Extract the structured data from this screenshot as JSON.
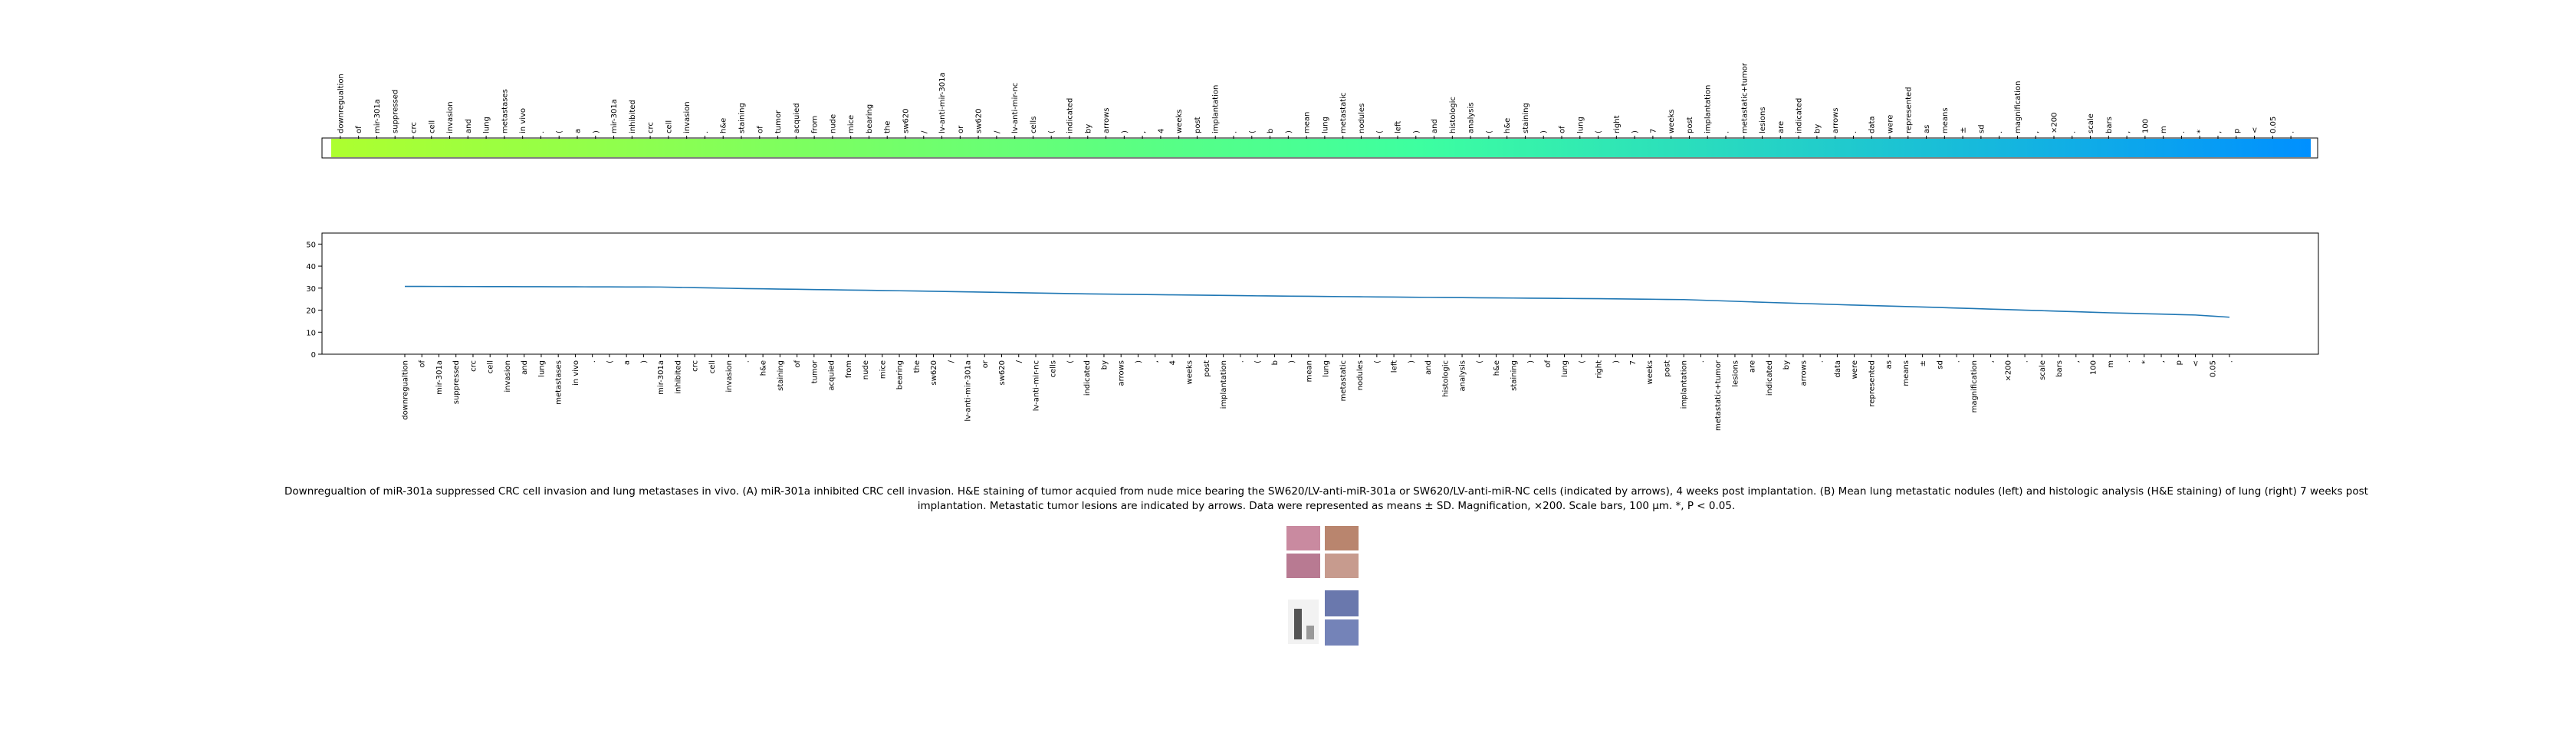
{
  "caption": "Downregualtion of miR-301a suppressed CRC cell invasion and lung metastases in vivo. (A) miR-301a inhibited CRC cell invasion. H&E staining of tumor acquied from nude mice bearing the SW620/LV-anti-miR-301a or SW620/LV-anti-miR-NC cells (indicated by arrows), 4 weeks post implantation. (B) Mean lung metastatic nodules (left) and histologic analysis (H&E staining) of lung (right) 7 weeks post implantation. Metastatic tumor lesions are indicated by arrows. Data were represented as means ± SD. Magnification, ×200. Scale bars, 100 μm. *, P < 0.05.",
  "colors": {
    "line": "#1f77b4",
    "bar_start": "#adff2f",
    "bar_mid": "#3dffa0",
    "bar_end": "#0090ff"
  },
  "chart_data": [
    {
      "type": "heatmap",
      "title": "",
      "tokens": [
        "downregualtion",
        "of",
        "mir-301a",
        "suppressed",
        "crc",
        "cell",
        "invasion",
        "and",
        "lung",
        "metastases",
        "in vivo",
        ".",
        "(",
        "a",
        ")",
        "mir-301a",
        "inhibited",
        "crc",
        "cell",
        "invasion",
        ".",
        "h&e",
        "staining",
        "of",
        "tumor",
        "acquied",
        "from",
        "nude",
        "mice",
        "bearing",
        "the",
        "sw620",
        "/",
        "lv-anti-mir-301a",
        "or",
        "sw620",
        "/",
        "lv-anti-mir-nc",
        "cells",
        "(",
        "indicated",
        "by",
        "arrows",
        ")",
        ",",
        "4",
        "weeks",
        "post",
        "implantation",
        ".",
        "(",
        "b",
        ")",
        "mean",
        "lung",
        "metastatic",
        "nodules",
        "(",
        "left",
        ")",
        "and",
        "histologic",
        "analysis",
        "(",
        "h&e",
        "staining",
        ")",
        "of",
        "lung",
        "(",
        "right",
        ")",
        "7",
        "weeks",
        "post",
        "implantation",
        ".",
        "metastatic+tumor",
        "lesions",
        "are",
        "indicated",
        "by",
        "arrows",
        ".",
        "data",
        "were",
        "represented",
        "as",
        "means",
        "±",
        "sd",
        ".",
        "magnification",
        ",",
        "×200",
        ".",
        "scale",
        "bars",
        ",",
        "100",
        "m",
        ".",
        "*",
        ",",
        "p",
        "<",
        "0.05",
        "."
      ],
      "colormap": [
        "#adff2f",
        "#3dffa0",
        "#0090ff"
      ]
    },
    {
      "type": "line",
      "title": "",
      "xlabel": "",
      "ylabel": "",
      "xticklabels": [
        "downregualtion",
        "of",
        "mir-301a",
        "suppressed",
        "crc",
        "cell",
        "invasion",
        "and",
        "lung",
        "metastases",
        "in vivo",
        ".",
        "(",
        "a",
        ")",
        "mir-301a",
        "inhibited",
        "crc",
        "cell",
        "invasion",
        ".",
        "h&e",
        "staining",
        "of",
        "tumor",
        "acquied",
        "from",
        "nude",
        "mice",
        "bearing",
        "the",
        "sw620",
        "/",
        "lv-anti-mir-301a",
        "or",
        "sw620",
        "/",
        "lv-anti-mir-nc",
        "cells",
        "(",
        "indicated",
        "by",
        "arrows",
        ")",
        ",",
        "4",
        "weeks",
        "post",
        "implantation",
        ".",
        "(",
        "b",
        ")",
        "mean",
        "lung",
        "metastatic",
        "nodules",
        "(",
        "left",
        ")",
        "and",
        "histologic",
        "analysis",
        "(",
        "h&e",
        "staining",
        ")",
        "of",
        "lung",
        "(",
        "right",
        ")",
        "7",
        "weeks",
        "post",
        "implantation",
        ".",
        "metastatic+tumor",
        "lesions",
        "are",
        "indicated",
        "by",
        "arrows",
        ".",
        "data",
        "were",
        "represented",
        "as",
        "means",
        "±",
        "sd",
        ".",
        "magnification",
        ",",
        "×200",
        ".",
        "scale",
        "bars",
        ",",
        "100",
        "m",
        ".",
        "*",
        ",",
        "p",
        "<",
        "0.05",
        "."
      ],
      "ylim": [
        0,
        55
      ],
      "yticks": [
        0,
        10,
        20,
        30,
        40,
        50
      ],
      "anchors": [
        [
          0,
          30.8
        ],
        [
          10,
          30.6
        ],
        [
          15,
          30.5
        ],
        [
          20,
          29.8
        ],
        [
          30,
          28.7
        ],
        [
          40,
          27.4
        ],
        [
          50,
          26.5
        ],
        [
          60,
          25.8
        ],
        [
          70,
          25.2
        ],
        [
          75,
          24.8
        ],
        [
          80,
          23.5
        ],
        [
          85,
          22.3
        ],
        [
          90,
          21.2
        ],
        [
          95,
          20.0
        ],
        [
          100,
          18.8
        ],
        [
          105,
          17.8
        ],
        [
          109,
          15.8
        ]
      ],
      "grid": false
    }
  ]
}
